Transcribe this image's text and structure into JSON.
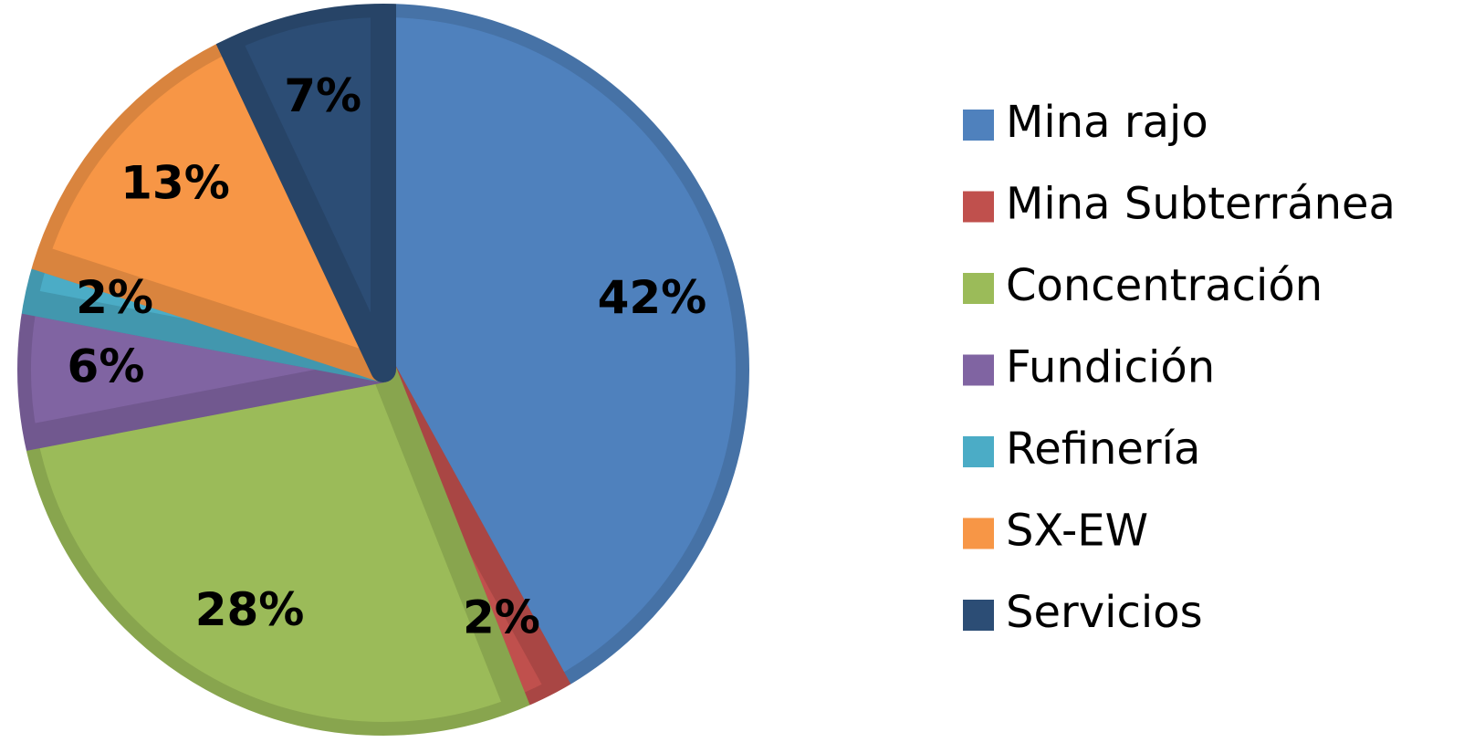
{
  "chart_data": {
    "type": "pie",
    "categories": [
      "Mina rajo",
      "Mina Subterránea",
      "Concentración",
      "Fundición",
      "Refinería",
      "SX-EW",
      "Servicios"
    ],
    "values": [
      42,
      2,
      28,
      6,
      2,
      13,
      7
    ],
    "value_labels": [
      "42%",
      "2%",
      "28%",
      "6%",
      "2%",
      "13%",
      "7%"
    ],
    "colors": [
      "#4f81bd",
      "#c0504d",
      "#9bbb59",
      "#8064a2",
      "#4bacc6",
      "#f79646",
      "#2c4d75"
    ]
  }
}
